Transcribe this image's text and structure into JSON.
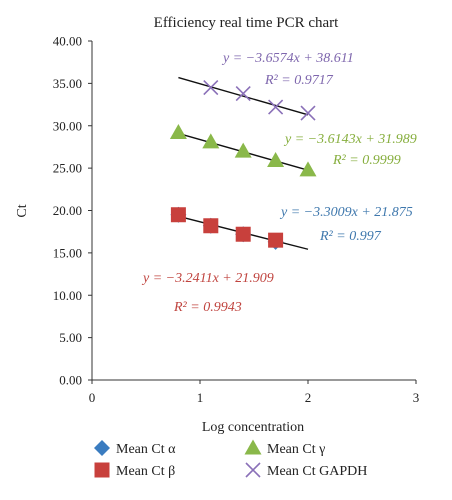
{
  "chart_data": {
    "type": "scatter",
    "title": "Efficiency real time PCR chart",
    "xlabel": "Log concentration",
    "ylabel": "Ct",
    "xlim": [
      0,
      3
    ],
    "ylim": [
      0,
      40
    ],
    "xticks": [
      "0",
      "1",
      "2",
      "3"
    ],
    "yticks": [
      "0.00",
      "5.00",
      "10.00",
      "15.00",
      "20.00",
      "25.00",
      "30.00",
      "35.00",
      "40.00"
    ],
    "grid": false,
    "legend_position": "bottom",
    "series": [
      {
        "name": "Mean Ct α",
        "marker": "diamond",
        "color": "#3a7cc0",
        "x": [
          0.8,
          1.1,
          1.4,
          1.7
        ],
        "y": [
          19.5,
          18.2,
          17.2,
          16.3
        ],
        "trend": {
          "slope": -3.3009,
          "intercept": 21.875,
          "x_range": [
            0.8,
            2.0
          ]
        },
        "equation": "y = −3.3009x + 21.875",
        "r2": "R² = 0.997",
        "label_color": "#3f78ad"
      },
      {
        "name": "Mean Ct β",
        "marker": "square",
        "color": "#c8403c",
        "x": [
          0.8,
          1.1,
          1.4,
          1.7
        ],
        "y": [
          19.5,
          18.2,
          17.2,
          16.5
        ],
        "trend": {
          "slope": -3.2411,
          "intercept": 21.909,
          "x_range": [
            0.8,
            2.0
          ]
        },
        "equation": "y = −3.2411x + 21.909",
        "r2": "R² = 0.9943",
        "label_color": "#c0443f"
      },
      {
        "name": "Mean Ct γ",
        "marker": "triangle",
        "color": "#8ab84a",
        "x": [
          0.8,
          1.1,
          1.4,
          1.7,
          2.0
        ],
        "y": [
          29.2,
          28.1,
          27.0,
          25.9,
          24.8
        ],
        "trend": {
          "slope": -3.6143,
          "intercept": 31.989,
          "x_range": [
            0.8,
            2.0
          ]
        },
        "equation": "y = −3.6143x + 31.989",
        "r2": "R² = 0.9999",
        "label_color": "#86ae3d"
      },
      {
        "name": "Mean Ct GAPDH",
        "marker": "x",
        "color": "#8a70b8",
        "x": [
          1.1,
          1.4,
          1.7,
          2.0
        ],
        "y": [
          34.5,
          33.8,
          32.2,
          31.5
        ],
        "trend": {
          "slope": -3.6574,
          "intercept": 38.611,
          "x_range": [
            0.8,
            2.0
          ]
        },
        "equation": "y = −3.6574x + 38.611",
        "r2": "R² = 0.9717",
        "label_color": "#7e66ad"
      }
    ]
  }
}
